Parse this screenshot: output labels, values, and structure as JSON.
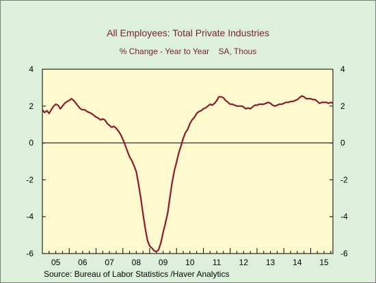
{
  "chart_data": {
    "type": "line",
    "title": "All Employees: Total Private Industries",
    "subtitle": "% Change - Year to Year    SA, Thous",
    "source": "Source:  Bureau of Labor Statistics /Haver Analytics",
    "ylim": [
      -6,
      4
    ],
    "yticks": [
      "-6",
      "-4",
      "-2",
      "0",
      "2",
      "4"
    ],
    "xlim": [
      2005.0,
      2015.83
    ],
    "x_tick_labels": [
      "05",
      "06",
      "07",
      "08",
      "09",
      "10",
      "11",
      "12",
      "13",
      "14",
      "15"
    ],
    "grid": false,
    "zero_line": true,
    "colors": {
      "plot_background": "#fffacd",
      "series_line": "#8b1a2b",
      "page_background": "#dcf0dc"
    },
    "series": [
      {
        "x": [
          2005.0,
          2005.08,
          2005.17,
          2005.25,
          2005.33,
          2005.42,
          2005.5,
          2005.58,
          2005.67,
          2005.75,
          2005.83,
          2005.92,
          2006.0,
          2006.08,
          2006.17,
          2006.25,
          2006.33,
          2006.42,
          2006.5,
          2006.58,
          2006.67,
          2006.75,
          2006.83,
          2006.92,
          2007.0,
          2007.08,
          2007.17,
          2007.25,
          2007.33,
          2007.42,
          2007.5,
          2007.58,
          2007.67,
          2007.75,
          2007.83,
          2007.92,
          2008.0,
          2008.08,
          2008.17,
          2008.25,
          2008.33,
          2008.42,
          2008.5,
          2008.58,
          2008.67,
          2008.75,
          2008.83,
          2008.92,
          2009.0,
          2009.08,
          2009.17,
          2009.25,
          2009.33,
          2009.42,
          2009.5,
          2009.58,
          2009.67,
          2009.75,
          2009.83,
          2009.92,
          2010.0,
          2010.08,
          2010.17,
          2010.25,
          2010.33,
          2010.42,
          2010.5,
          2010.58,
          2010.67,
          2010.75,
          2010.83,
          2010.92,
          2011.0,
          2011.08,
          2011.17,
          2011.25,
          2011.33,
          2011.42,
          2011.5,
          2011.58,
          2011.67,
          2011.75,
          2011.83,
          2011.92,
          2012.0,
          2012.08,
          2012.17,
          2012.25,
          2012.33,
          2012.42,
          2012.5,
          2012.58,
          2012.67,
          2012.75,
          2012.83,
          2012.92,
          2013.0,
          2013.08,
          2013.17,
          2013.25,
          2013.33,
          2013.42,
          2013.5,
          2013.58,
          2013.67,
          2013.75,
          2013.83,
          2013.92,
          2014.0,
          2014.08,
          2014.17,
          2014.25,
          2014.33,
          2014.42,
          2014.5,
          2014.58,
          2014.67,
          2014.75,
          2014.83,
          2014.92,
          2015.0,
          2015.08,
          2015.17,
          2015.25,
          2015.33,
          2015.42,
          2015.5,
          2015.58,
          2015.67,
          2015.75,
          2015.83
        ],
        "values": [
          1.8,
          1.65,
          1.75,
          1.6,
          1.8,
          2.0,
          2.1,
          2.05,
          1.85,
          2.0,
          2.15,
          2.25,
          2.3,
          2.4,
          2.3,
          2.15,
          2.0,
          1.85,
          1.8,
          1.8,
          1.7,
          1.65,
          1.6,
          1.5,
          1.4,
          1.35,
          1.25,
          1.3,
          1.25,
          1.05,
          0.95,
          0.85,
          0.9,
          0.8,
          0.65,
          0.45,
          0.2,
          -0.1,
          -0.45,
          -0.75,
          -0.95,
          -1.25,
          -1.55,
          -2.2,
          -3.0,
          -3.85,
          -4.6,
          -5.3,
          -5.6,
          -5.7,
          -5.85,
          -5.9,
          -5.8,
          -5.4,
          -4.85,
          -4.4,
          -3.8,
          -3.0,
          -2.2,
          -1.5,
          -1.05,
          -0.55,
          -0.15,
          0.25,
          0.55,
          0.75,
          1.05,
          1.25,
          1.4,
          1.6,
          1.7,
          1.75,
          1.85,
          1.9,
          2.0,
          2.1,
          2.05,
          2.15,
          2.3,
          2.5,
          2.5,
          2.45,
          2.3,
          2.2,
          2.1,
          2.1,
          2.05,
          2.0,
          2.0,
          2.0,
          1.95,
          1.85,
          1.9,
          1.85,
          1.95,
          2.05,
          2.05,
          2.1,
          2.1,
          2.1,
          2.15,
          2.2,
          2.15,
          2.05,
          2.0,
          2.05,
          2.1,
          2.1,
          2.15,
          2.2,
          2.2,
          2.25,
          2.25,
          2.3,
          2.35,
          2.45,
          2.55,
          2.5,
          2.4,
          2.4,
          2.4,
          2.35,
          2.35,
          2.25,
          2.15,
          2.2,
          2.2,
          2.2,
          2.15,
          2.2,
          2.15
        ]
      }
    ]
  }
}
